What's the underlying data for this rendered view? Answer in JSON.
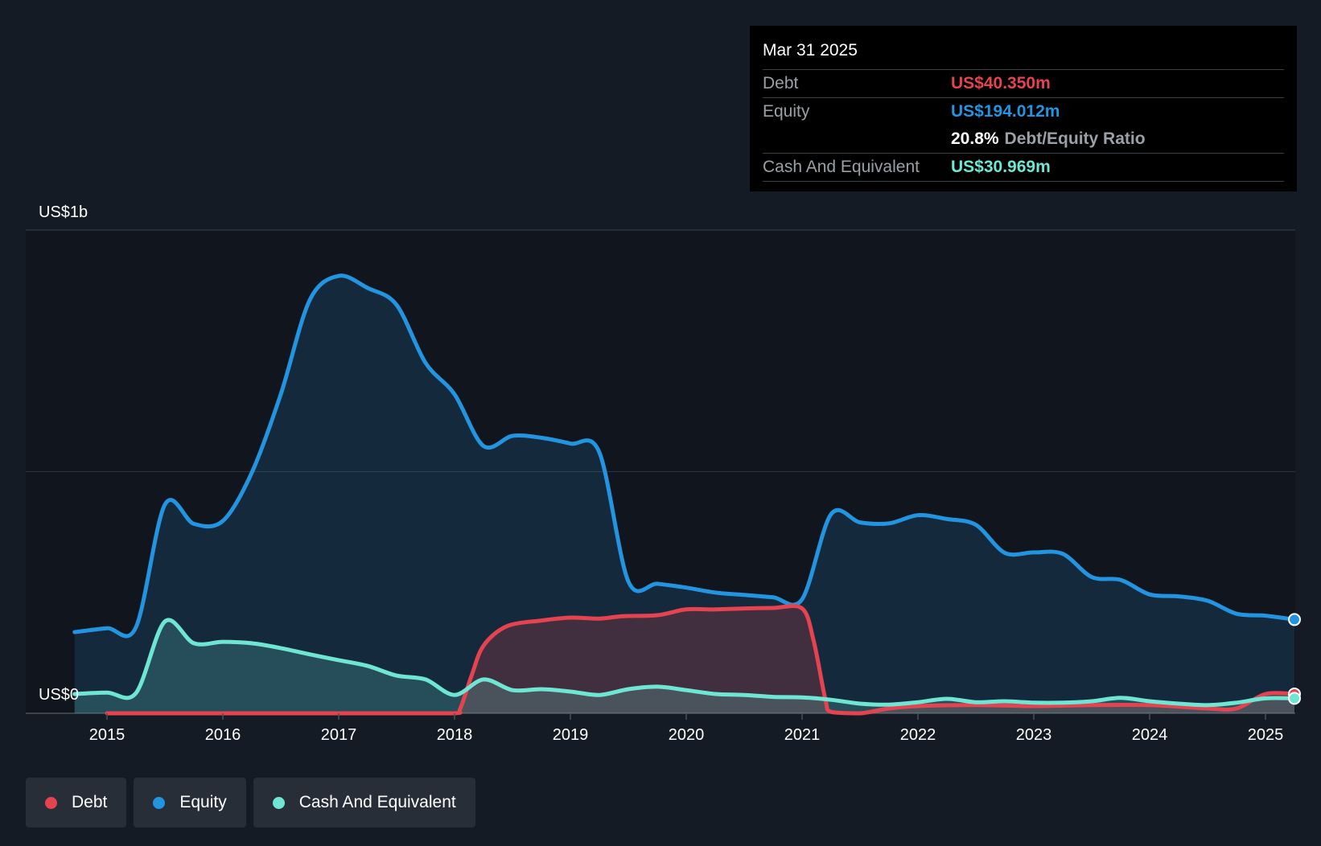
{
  "colors": {
    "debt": "#e5434f",
    "equity": "#2394df",
    "cash": "#6ee6d3",
    "background": "#151b24",
    "plot_area": "#11151d"
  },
  "tooltip": {
    "date": "Mar 31 2025",
    "debt_label": "Debt",
    "debt_value": "US$40.350m",
    "equity_label": "Equity",
    "equity_value": "US$194.012m",
    "ratio_value": "20.8%",
    "ratio_label": "Debt/Equity Ratio",
    "cash_label": "Cash And Equivalent",
    "cash_value": "US$30.969m"
  },
  "legend": [
    {
      "label": "Debt",
      "color": "#e5434f"
    },
    {
      "label": "Equity",
      "color": "#2394df"
    },
    {
      "label": "Cash And Equivalent",
      "color": "#6ee6d3"
    }
  ],
  "chart_data": {
    "type": "area",
    "title": "",
    "xlabel": "",
    "ylabel": "",
    "y_top_label": "US$1b",
    "y_bottom_label": "US$0",
    "ylim": [
      0,
      1000
    ],
    "y_unit": "US$m",
    "xlim": [
      2014.72,
      2025.25
    ],
    "x_ticks": [
      2015,
      2016,
      2017,
      2018,
      2019,
      2020,
      2021,
      2022,
      2023,
      2024,
      2025
    ],
    "x_tick_labels": [
      "2015",
      "2016",
      "2017",
      "2018",
      "2019",
      "2020",
      "2021",
      "2022",
      "2023",
      "2024",
      "2025"
    ],
    "grid": true,
    "legend_position": "bottom-left",
    "series": [
      {
        "name": "Debt",
        "x": [
          2015.0,
          2015.5,
          2016.0,
          2016.5,
          2017.0,
          2017.5,
          2018.0,
          2018.05,
          2018.15,
          2018.25,
          2018.45,
          2018.75,
          2019.0,
          2019.25,
          2019.45,
          2019.75,
          2020.0,
          2020.25,
          2020.5,
          2020.75,
          2021.0,
          2021.1,
          2021.2,
          2021.25,
          2021.5,
          2021.75,
          2022.0,
          2022.5,
          2023.0,
          2023.5,
          2024.0,
          2024.5,
          2024.75,
          2025.0,
          2025.25
        ],
        "values": [
          0,
          0,
          0,
          0,
          0,
          0,
          0,
          10,
          80,
          140,
          180,
          192,
          198,
          196,
          201,
          203,
          215,
          215,
          217,
          218,
          217,
          150,
          30,
          3,
          0,
          10,
          15,
          17,
          15,
          17,
          17,
          10,
          10,
          40,
          40
        ]
      },
      {
        "name": "Equity",
        "x": [
          2014.72,
          2015.0,
          2015.25,
          2015.5,
          2015.75,
          2016.0,
          2016.25,
          2016.5,
          2016.75,
          2017.0,
          2017.25,
          2017.5,
          2017.75,
          2018.0,
          2018.25,
          2018.5,
          2018.75,
          2019.0,
          2019.25,
          2019.5,
          2019.75,
          2020.0,
          2020.25,
          2020.5,
          2020.75,
          2021.0,
          2021.25,
          2021.5,
          2021.75,
          2022.0,
          2022.25,
          2022.5,
          2022.75,
          2023.0,
          2023.25,
          2023.5,
          2023.75,
          2024.0,
          2024.25,
          2024.5,
          2024.75,
          2025.0,
          2025.25
        ],
        "values": [
          168,
          176,
          178,
          432,
          392,
          398,
          498,
          660,
          855,
          905,
          880,
          845,
          725,
          660,
          553,
          574,
          570,
          558,
          540,
          273,
          268,
          260,
          250,
          245,
          240,
          236,
          412,
          395,
          393,
          410,
          402,
          390,
          332,
          333,
          330,
          282,
          276,
          246,
          242,
          233,
          206,
          202,
          194
        ]
      },
      {
        "name": "Cash And Equivalent",
        "x": [
          2014.72,
          2015.0,
          2015.25,
          2015.5,
          2015.75,
          2016.0,
          2016.25,
          2016.5,
          2016.75,
          2017.0,
          2017.25,
          2017.5,
          2017.75,
          2018.0,
          2018.25,
          2018.5,
          2018.75,
          2019.0,
          2019.25,
          2019.5,
          2019.75,
          2020.0,
          2020.25,
          2020.5,
          2020.75,
          2021.0,
          2021.25,
          2021.5,
          2021.75,
          2022.0,
          2022.25,
          2022.5,
          2022.75,
          2023.0,
          2023.25,
          2023.5,
          2023.75,
          2024.0,
          2024.25,
          2024.5,
          2024.75,
          2025.0,
          2025.25
        ],
        "values": [
          40,
          43,
          42,
          190,
          145,
          148,
          145,
          135,
          122,
          110,
          98,
          78,
          70,
          38,
          70,
          48,
          50,
          45,
          38,
          50,
          55,
          48,
          40,
          38,
          34,
          33,
          28,
          20,
          18,
          23,
          30,
          23,
          25,
          22,
          22,
          25,
          32,
          25,
          20,
          17,
          22,
          31,
          31
        ]
      }
    ]
  }
}
